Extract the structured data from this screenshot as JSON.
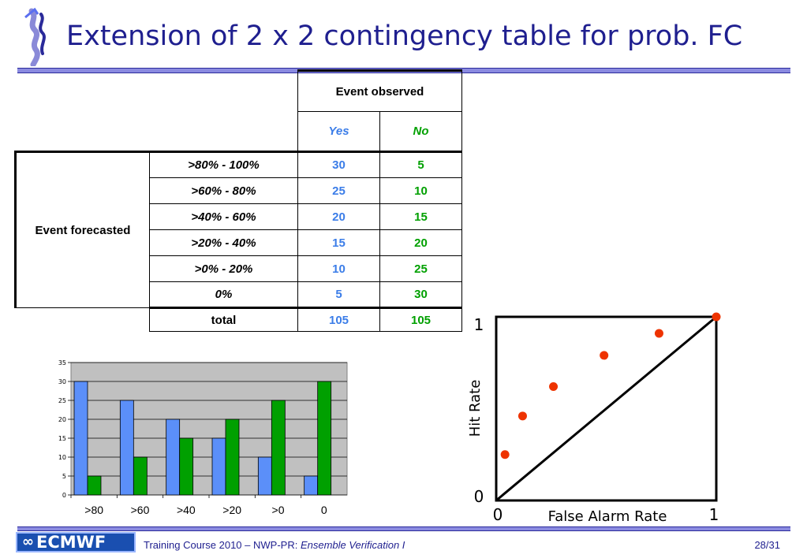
{
  "slide": {
    "title": "Extension of 2 x 2 contingency table for prob. FC",
    "page_number": "28/31"
  },
  "table": {
    "header_observed": "Event observed",
    "col_yes": "Yes",
    "col_no": "No",
    "row_group_label": "Event forecasted",
    "rows": [
      {
        "label": ">80% - 100%",
        "yes": "30",
        "no": "5"
      },
      {
        "label": ">60% - 80%",
        "yes": "25",
        "no": "10"
      },
      {
        "label": ">40% - 60%",
        "yes": "20",
        "no": "15"
      },
      {
        "label": ">20% - 40%",
        "yes": "15",
        "no": "20"
      },
      {
        "label": ">0% - 20%",
        "yes": "10",
        "no": "25"
      },
      {
        "label": "0%",
        "yes": "5",
        "no": "30"
      }
    ],
    "total": {
      "label": "total",
      "yes": "105",
      "no": "105"
    }
  },
  "chart_data": [
    {
      "type": "bar",
      "categories": [
        ">80",
        ">60",
        ">40",
        ">20",
        ">0",
        "0"
      ],
      "series": [
        {
          "values": [
            30,
            25,
            20,
            15,
            10,
            5
          ],
          "color": "#5b8ff9"
        },
        {
          "values": [
            5,
            10,
            15,
            20,
            25,
            30
          ],
          "color": "#00a000"
        }
      ],
      "ylim": [
        0,
        35
      ],
      "yticks": [
        "0",
        "5",
        "10",
        "15",
        "20",
        "25",
        "30",
        "35"
      ],
      "grid": true,
      "plot_background": "#c0c0c0"
    },
    {
      "type": "scatter",
      "xlabel": "False Alarm Rate",
      "ylabel": "Hit Rate",
      "xlim": [
        0,
        1
      ],
      "ylim": [
        0,
        1
      ],
      "x_tick_labels": [
        "0",
        "1"
      ],
      "y_tick_labels": [
        "0",
        "1"
      ],
      "diagonal": true,
      "points": [
        {
          "x": 0.04,
          "y": 0.25
        },
        {
          "x": 0.12,
          "y": 0.46
        },
        {
          "x": 0.26,
          "y": 0.62
        },
        {
          "x": 0.49,
          "y": 0.79
        },
        {
          "x": 0.74,
          "y": 0.91
        },
        {
          "x": 1.0,
          "y": 1.0
        }
      ],
      "point_color": "#ee3300"
    }
  ],
  "footer": {
    "logo_text": "ECMWF",
    "course_prefix": "Training Course 2010 – NWP-PR: ",
    "course_topic": "Ensemble Verification I"
  },
  "icons": [
    "ecmwf-wave-logo-icon",
    "ecmwf-footer-logo-icon"
  ]
}
